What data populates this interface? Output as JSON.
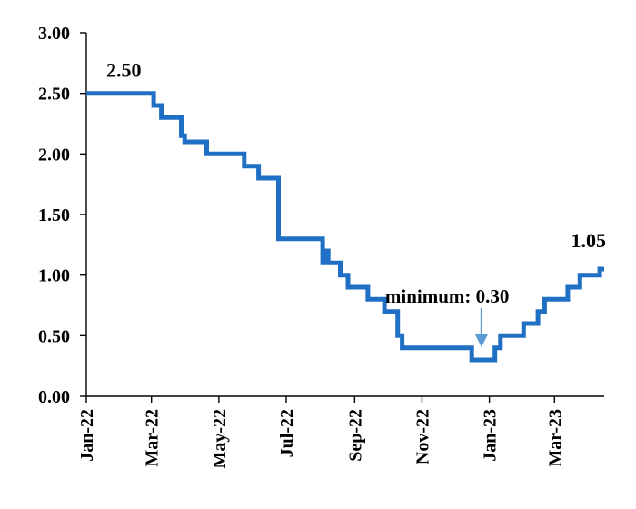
{
  "chart_data": {
    "type": "line",
    "x_axis": {
      "ticks": [
        {
          "date": "2022-01-01",
          "label": "Jan-22"
        },
        {
          "date": "2022-03-01",
          "label": "Mar-22"
        },
        {
          "date": "2022-05-01",
          "label": "May-22"
        },
        {
          "date": "2022-07-01",
          "label": "Jul-22"
        },
        {
          "date": "2022-09-01",
          "label": "Sep-22"
        },
        {
          "date": "2022-11-01",
          "label": "Nov-22"
        },
        {
          "date": "2023-01-01",
          "label": "Jan-23"
        },
        {
          "date": "2023-03-01",
          "label": "Mar-23"
        }
      ],
      "range": [
        "2022-01-01",
        "2023-04-15"
      ]
    },
    "y_axis": {
      "ticks": [
        0.0,
        0.5,
        1.0,
        1.5,
        2.0,
        2.5,
        3.0
      ],
      "tick_labels": [
        "0.00",
        "0.50",
        "1.00",
        "1.50",
        "2.00",
        "2.50",
        "3.00"
      ],
      "ylim": [
        0,
        3
      ]
    },
    "series": [
      {
        "color": "#1f6fc5",
        "step": true,
        "points": [
          [
            "2022-01-01",
            2.5
          ],
          [
            "2022-03-03",
            2.4
          ],
          [
            "2022-03-10",
            2.3
          ],
          [
            "2022-03-28",
            2.15
          ],
          [
            "2022-03-31",
            2.1
          ],
          [
            "2022-04-20",
            2.0
          ],
          [
            "2022-05-24",
            1.9
          ],
          [
            "2022-06-06",
            1.8
          ],
          [
            "2022-06-24",
            1.3
          ],
          [
            "2022-08-03",
            1.1
          ],
          [
            "2022-08-05",
            1.2
          ],
          [
            "2022-08-08",
            1.1
          ],
          [
            "2022-08-19",
            1.0
          ],
          [
            "2022-08-26",
            0.9
          ],
          [
            "2022-09-13",
            0.8
          ],
          [
            "2022-09-28",
            0.7
          ],
          [
            "2022-10-10",
            0.5
          ],
          [
            "2022-10-14",
            0.4
          ],
          [
            "2022-12-16",
            0.3
          ],
          [
            "2023-01-06",
            0.4
          ],
          [
            "2023-01-11",
            0.5
          ],
          [
            "2023-02-01",
            0.6
          ],
          [
            "2023-02-14",
            0.7
          ],
          [
            "2023-02-20",
            0.8
          ],
          [
            "2023-03-13",
            0.9
          ],
          [
            "2023-03-24",
            1.0
          ],
          [
            "2023-04-11",
            1.05
          ],
          [
            "2023-04-15",
            1.05
          ]
        ]
      }
    ],
    "data_labels": [
      {
        "text": "2.50"
      },
      {
        "text": "1.05"
      }
    ],
    "annotation": {
      "text": "minimum: 0.30",
      "arrow_color": "#5b9bd5"
    },
    "grid": false
  }
}
